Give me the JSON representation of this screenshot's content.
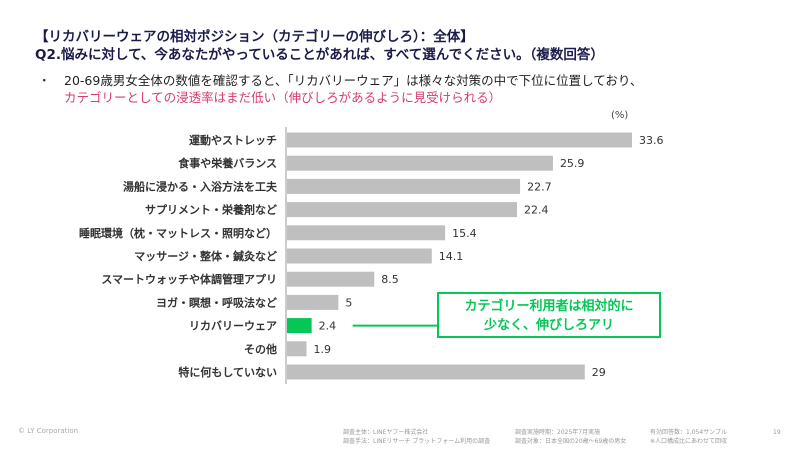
{
  "header": {
    "title": "【リカバリーウェアの相対ポジション（カテゴリーの伸びしろ）：全体】",
    "question": "Q2.悩みに対して、今あなたがやっていることがあれば、すべて選んでください。（複数回答）"
  },
  "bullet": {
    "marker": "・",
    "line1": "20-69歳男女全体の数値を確認すると、「リカバリーウェア」は様々な対策の中で下位に位置しており、",
    "line2": "カテゴリーとしての浸透率はまだ低い（伸びしろがあるように見受けられる）"
  },
  "callout": {
    "line1": "カテゴリー利用者は相対的に",
    "line2": "少なく、伸びしろアリ"
  },
  "chart_data": {
    "type": "bar",
    "orientation": "horizontal",
    "unit": "(%)",
    "categories": [
      "運動やストレッチ",
      "食事や栄養バランス",
      "湯船に浸かる・入浴方法を工夫",
      "サプリメント・栄養剤など",
      "睡眠環境（枕・マットレス・照明など）",
      "マッサージ・整体・鍼灸など",
      "スマートウォッチや体調管理アプリ",
      "ヨガ・瞑想・呼吸法など",
      "リカバリーウェア",
      "その他",
      "特に何もしていない"
    ],
    "values": [
      33.6,
      25.9,
      22.7,
      22.4,
      15.4,
      14.1,
      8.5,
      5,
      2.4,
      1.9,
      29
    ],
    "labels": [
      "33.6",
      "25.9",
      "22.7",
      "22.4",
      "15.4",
      "14.1",
      "8.5",
      "5",
      "2.4",
      "1.9",
      "29"
    ],
    "highlight_index": 8,
    "colors": {
      "default": "#bfbfbf",
      "highlight": "#06c755"
    },
    "xlim": [
      0,
      33.6
    ]
  },
  "footer": {
    "copyright": "© LY Corporation",
    "sponsor": "調査主体：LINEヤフー株式会社",
    "method": "調査手法：LINEリサーチ プラットフォーム利用の調査",
    "period": "調査実施時期：2025年7月実施",
    "target": "調査対象：日本全国の20歳～69歳の男女",
    "responses": "有効回答数：1,054サンプル",
    "weighting": "※人口構成比にあわせて回収",
    "page": "19"
  }
}
